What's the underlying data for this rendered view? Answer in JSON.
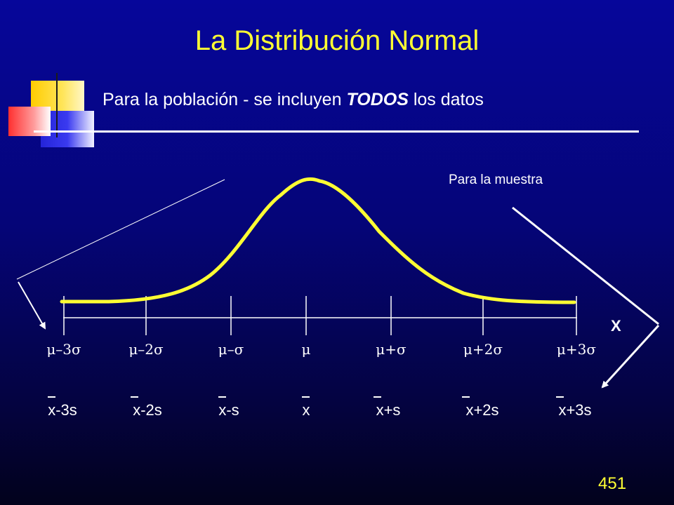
{
  "slide": {
    "title": "La Distribución Normal",
    "subtitle": {
      "before": "Para la población - se incluyen ",
      "emphasis": "TODOS",
      "after": " los datos"
    },
    "sample_label": "Para la muestra",
    "axis_label": "X",
    "page_number": "451"
  },
  "population_labels": [
    "μ–3σ",
    "μ–2σ",
    "μ–σ",
    "μ",
    "μ+σ",
    "μ+2σ",
    "μ+3σ"
  ],
  "sample_labels": [
    "x-3s",
    "x-2s",
    "x-s",
    "x",
    "x+s",
    "x+2s",
    "x+3s"
  ],
  "colors": {
    "title": "#ffff33",
    "curve": "#ffff33",
    "text": "#ffffff",
    "background": "#050577"
  }
}
